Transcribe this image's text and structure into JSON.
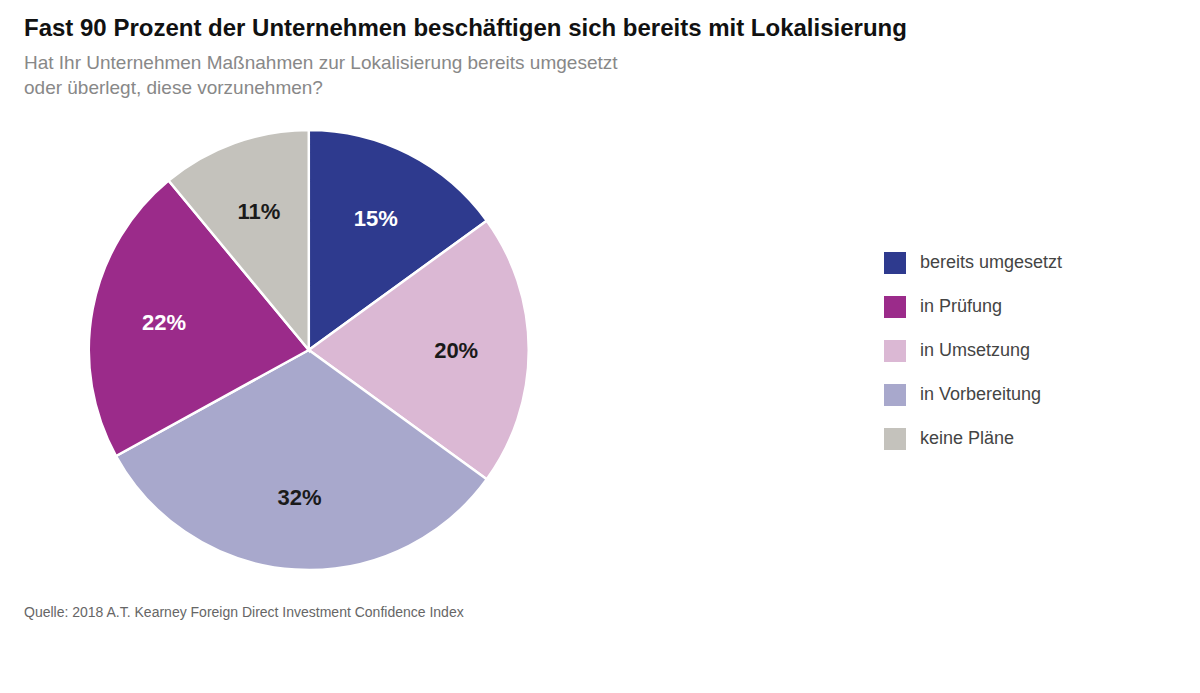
{
  "chart_data": {
    "type": "pie",
    "title": "Fast 90 Prozent der Unternehmen beschäftigen sich bereits mit Lokalisierung",
    "subtitle": [
      "Hat Ihr Unternehmen Maßnahmen zur Lokalisierung bereits umgesetzt",
      "oder überlegt, diese vorzunehmen?"
    ],
    "source": "Quelle: 2018 A.T. Kearney Foreign Direct Investment Confidence Index",
    "categories": [
      "bereits umgesetzt",
      "in Umsetzung",
      "in Vorbereitung",
      "in Prüfung",
      "keine Pläne"
    ],
    "values": [
      15,
      20,
      32,
      22,
      11
    ],
    "value_labels": [
      "15%",
      "20%",
      "32%",
      "22%",
      "11%"
    ],
    "colors": [
      "#2e3a8e",
      "#dbb8d4",
      "#a8a8cc",
      "#9b2b8a",
      "#c4c2bc"
    ],
    "data_labels": true,
    "legend": "right"
  }
}
